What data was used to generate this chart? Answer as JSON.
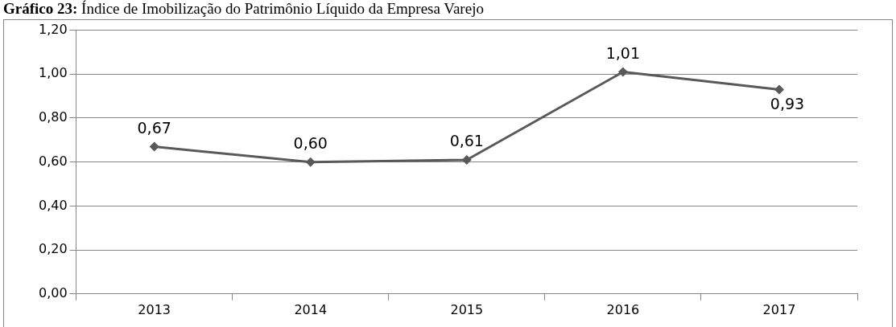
{
  "chart_data": {
    "type": "line",
    "title": "Gráfico 23: Índice de Imobilização do Patrimônio Líquido da Empresa Varejo",
    "categories": [
      "2013",
      "2014",
      "2015",
      "2016",
      "2017"
    ],
    "series": [
      {
        "color": "#595959",
        "values": [
          0.67,
          0.6,
          0.61,
          1.01,
          0.93
        ],
        "value_labels": [
          "0,67",
          "0,60",
          "0,61",
          "1,01",
          "0,93"
        ]
      }
    ],
    "ylim": [
      0,
      1.2
    ],
    "yticks": [
      {
        "value": 0,
        "label": "0,00"
      },
      {
        "value": 0.2,
        "label": "0,20"
      },
      {
        "value": 0.4,
        "label": "0,40"
      },
      {
        "value": 0.6,
        "label": "0,60"
      },
      {
        "value": 0.8,
        "label": "0,80"
      },
      {
        "value": 1,
        "label": "1,00"
      },
      {
        "value": 1.2,
        "label": "1,20"
      }
    ],
    "grid": "y",
    "marker": "diamond",
    "line_style": "solid",
    "legend": false
  }
}
